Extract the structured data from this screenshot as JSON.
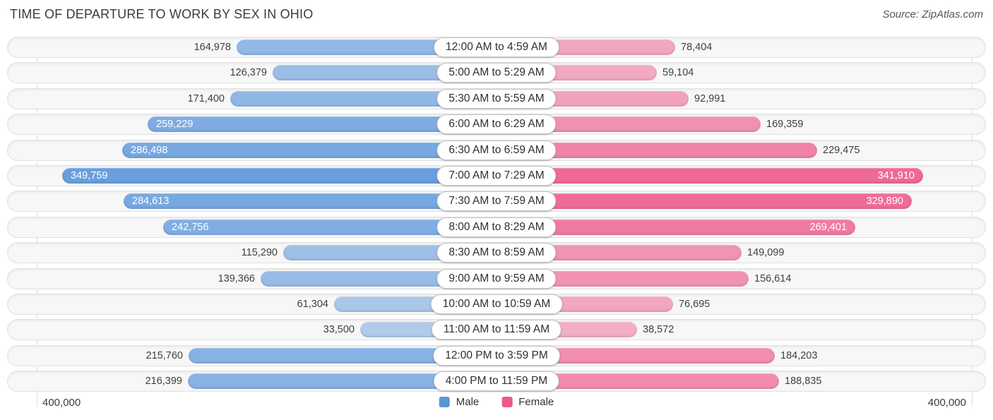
{
  "header": {
    "title": "TIME OF DEPARTURE TO WORK BY SEX IN OHIO",
    "source": "Source: ZipAtlas.com"
  },
  "legend": {
    "male_label": "Male",
    "female_label": "Female"
  },
  "axis": {
    "left_label": "400,000",
    "right_label": "400,000",
    "max_value": 400000
  },
  "colors": {
    "male_base_rgb": "66,135,215",
    "female_base_rgb": "236,64,122",
    "male_legend": "#5b95d6",
    "female_legend": "#ee568c"
  },
  "chart_data": {
    "type": "bar",
    "subtype": "diverging-horizontal-pyramid",
    "title": "TIME OF DEPARTURE TO WORK BY SEX IN OHIO",
    "categories": [
      "12:00 AM to 4:59 AM",
      "5:00 AM to 5:29 AM",
      "5:30 AM to 5:59 AM",
      "6:00 AM to 6:29 AM",
      "6:30 AM to 6:59 AM",
      "7:00 AM to 7:29 AM",
      "7:30 AM to 7:59 AM",
      "8:00 AM to 8:29 AM",
      "8:30 AM to 8:59 AM",
      "9:00 AM to 9:59 AM",
      "10:00 AM to 10:59 AM",
      "11:00 AM to 11:59 AM",
      "12:00 PM to 3:59 PM",
      "4:00 PM to 11:59 PM"
    ],
    "series": [
      {
        "name": "Male",
        "side": "left",
        "values": [
          164978,
          126379,
          171400,
          259229,
          286498,
          349759,
          284613,
          242756,
          115290,
          139366,
          61304,
          33500,
          215760,
          216399
        ]
      },
      {
        "name": "Female",
        "side": "right",
        "values": [
          78404,
          59104,
          92991,
          169359,
          229475,
          341910,
          329890,
          269401,
          149099,
          156614,
          76695,
          38572,
          184203,
          188835
        ]
      }
    ],
    "value_labels_inside_threshold": 240000,
    "xlim": [
      -400000,
      400000
    ],
    "legend_position": "bottom-center",
    "grid": "edge-ticks-only"
  }
}
